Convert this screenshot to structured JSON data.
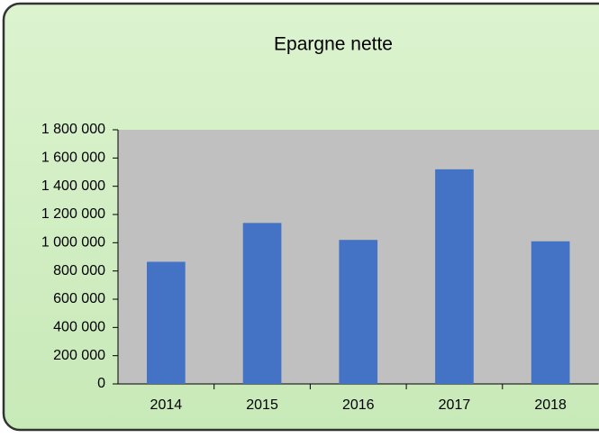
{
  "chart_data": {
    "type": "bar",
    "title": "Epargne nette",
    "categories": [
      "2014",
      "2015",
      "2016",
      "2017",
      "2018"
    ],
    "values": [
      865000,
      1140000,
      1020000,
      1520000,
      1010000
    ],
    "color": "#4472c4",
    "ylim": [
      0,
      1800000
    ],
    "yticks": [
      0,
      {
        "value": 200000,
        "label": "200 000"
      },
      {
        "value": 400000,
        "label": "400 000"
      },
      {
        "value": 600000,
        "label": "600 000"
      },
      {
        "value": 800000,
        "label": "800 000"
      },
      {
        "value": 1000000,
        "label": "1 000 000"
      },
      {
        "value": 1200000,
        "label": "1 200 000"
      },
      {
        "value": 1400000,
        "label": "1 400 000"
      },
      {
        "value": 1600000,
        "label": "1 600 000"
      },
      {
        "value": 1800000,
        "label": "1 800 000"
      }
    ],
    "grid": false
  }
}
